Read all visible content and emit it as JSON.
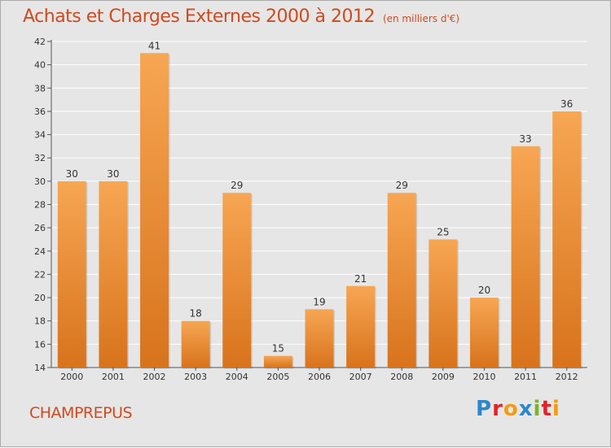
{
  "header": {
    "title": "Achats et Charges Externes 2000 à 2012",
    "unit": "(en milliers d'€)"
  },
  "footer": {
    "commune": "CHAMPREPUS",
    "brand": "Proxiti",
    "brand_letters": [
      {
        "char": "P",
        "color": "#2e86c9"
      },
      {
        "char": "r",
        "color": "#e2232a"
      },
      {
        "char": "o",
        "color": "#f39c12"
      },
      {
        "char": "x",
        "color": "#2e86c9"
      },
      {
        "char": "i",
        "color": "#7bb32e"
      },
      {
        "char": "t",
        "color": "#e2232a"
      },
      {
        "char": "i",
        "color": "#f39c12"
      }
    ]
  },
  "colors": {
    "bar_light": "#f7a653",
    "bar_dark": "#d8731c",
    "title": "#d04a1f",
    "grid": "#ffffff",
    "background": "#e6e6e6"
  },
  "chart_data": {
    "type": "bar",
    "categories": [
      "2000",
      "2001",
      "2002",
      "2003",
      "2004",
      "2005",
      "2006",
      "2007",
      "2008",
      "2009",
      "2010",
      "2011",
      "2012"
    ],
    "values": [
      30,
      30,
      41,
      18,
      29,
      15,
      19,
      21,
      29,
      25,
      20,
      33,
      36
    ],
    "ylim": [
      14,
      42
    ],
    "yticks": [
      14,
      16,
      18,
      20,
      22,
      24,
      26,
      28,
      30,
      32,
      34,
      36,
      38,
      40,
      42
    ],
    "grid": true,
    "data_labels": true
  }
}
